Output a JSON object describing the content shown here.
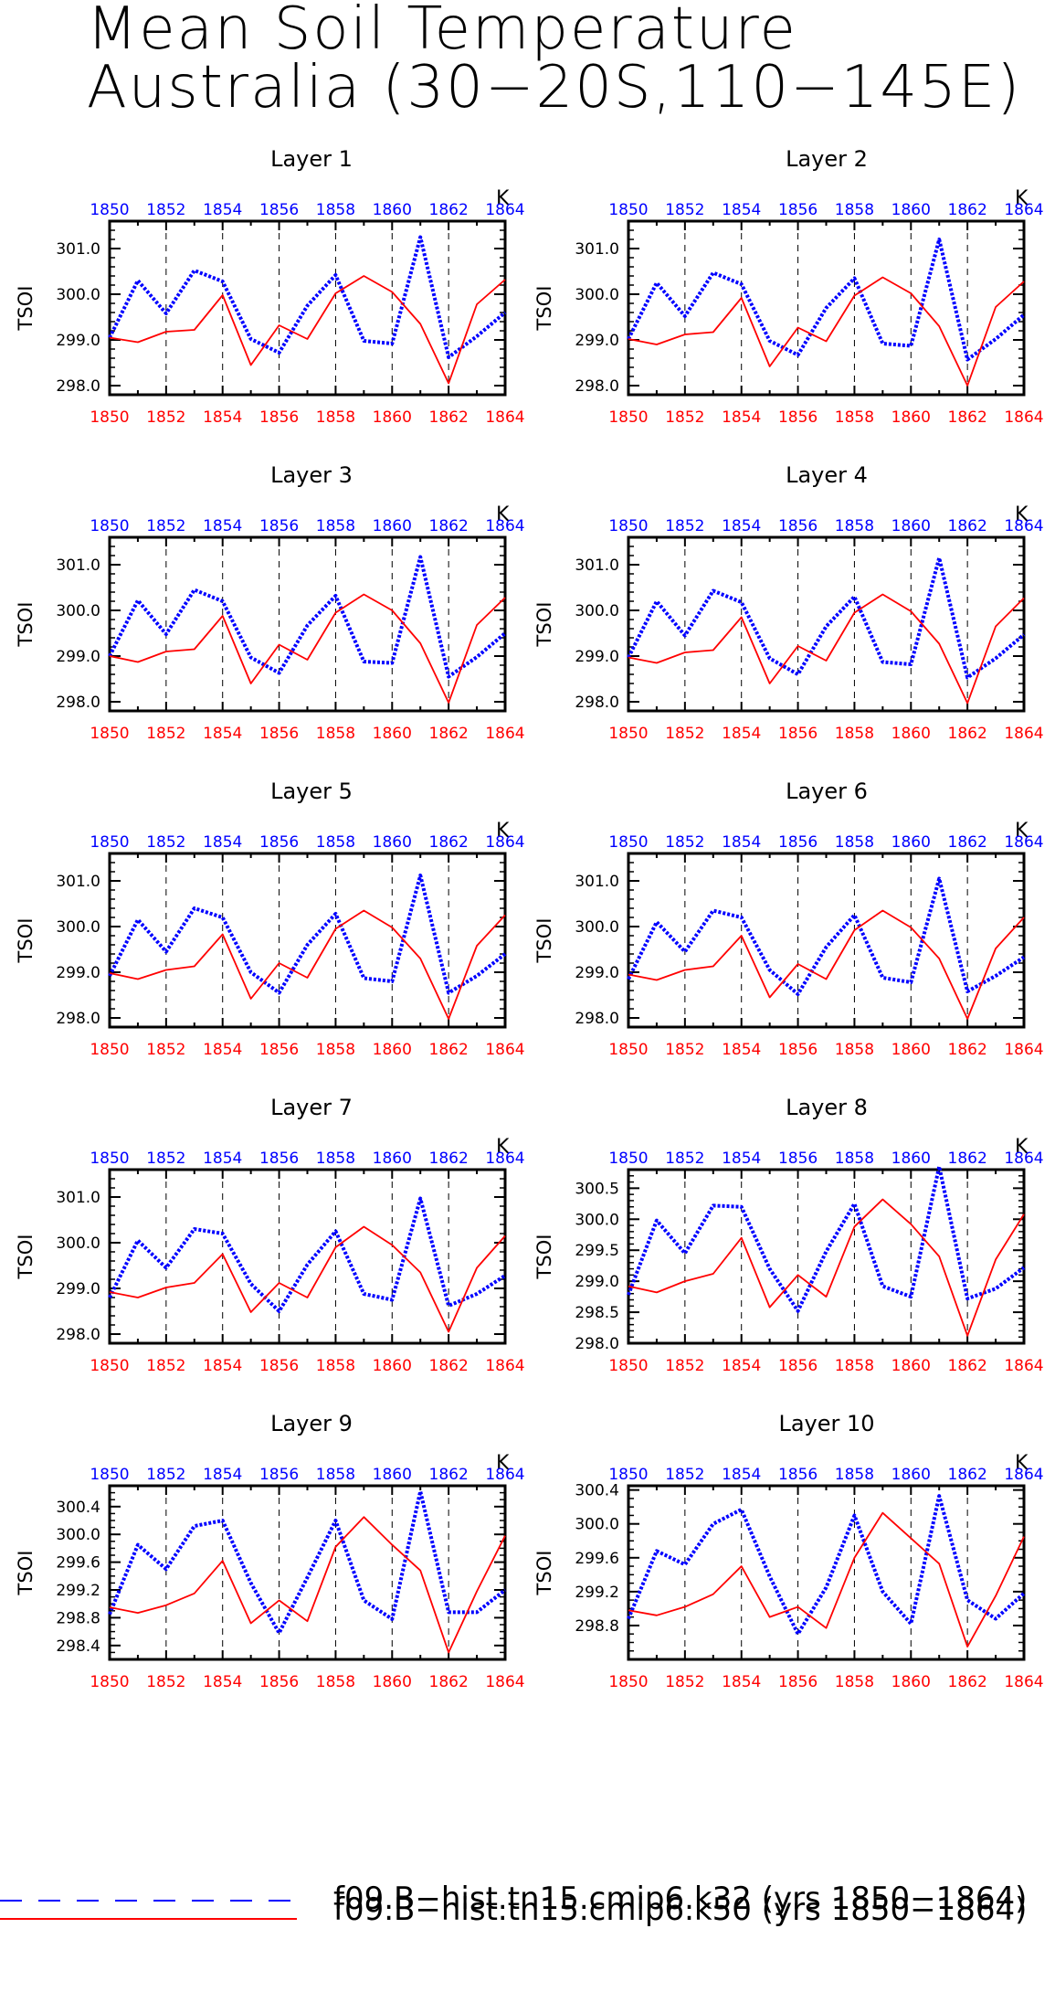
{
  "title": {
    "line1": "Mean Soil Temperature",
    "line2": "Australia (30−20S,110−145E)"
  },
  "colors": {
    "k32": "#0000ff",
    "k50": "#ff0000",
    "bottom_ticks": "#ff0000",
    "top_ticks": "#0000ff"
  },
  "legend": [
    {
      "label": "f09.B−hist.tn15.cmip6.k32 (yrs 1850−1864)",
      "color": "#0000ff",
      "style": "dashed"
    },
    {
      "label": "f09.B−hist.tn15.cmip6.k50 (yrs 1850−1864)",
      "color": "#ff0000",
      "style": "solid"
    }
  ],
  "chart_data": [
    {
      "type": "line",
      "title": "Layer 1",
      "ylabel": "TSOI",
      "units": "K",
      "x": [
        1850,
        1851,
        1852,
        1853,
        1854,
        1855,
        1856,
        1857,
        1858,
        1859,
        1860,
        1861,
        1862,
        1863,
        1864
      ],
      "xlim": [
        1850,
        1864
      ],
      "ylim": [
        297.8,
        301.6
      ],
      "yticks": [
        298.0,
        299.0,
        300.0,
        301.0
      ],
      "ytick_labels": [
        "298.0",
        "299.0",
        "300.0",
        "301.0"
      ],
      "yminor": 0.2,
      "xticks": [
        1850,
        1852,
        1854,
        1856,
        1858,
        1860,
        1862,
        1864
      ],
      "grid_x": [
        1852,
        1854,
        1856,
        1858,
        1860,
        1862
      ],
      "series": [
        {
          "name": "f09.B−hist.tn15.cmip6.k32",
          "color": "#0000ff",
          "style": "dotted",
          "values": [
            299.05,
            300.3,
            299.58,
            300.52,
            300.28,
            299.02,
            298.72,
            299.75,
            300.42,
            298.98,
            298.92,
            301.25,
            298.62,
            299.08,
            299.6
          ]
        },
        {
          "name": "f09.B−hist.tn15.cmip6.k50",
          "color": "#ff0000",
          "style": "solid",
          "values": [
            299.05,
            298.95,
            299.18,
            299.22,
            299.98,
            298.45,
            299.32,
            299.02,
            300.02,
            300.4,
            300.05,
            299.35,
            298.05,
            299.78,
            300.32
          ]
        }
      ]
    },
    {
      "type": "line",
      "title": "Layer 2",
      "ylabel": "TSOI",
      "units": "K",
      "x": [
        1850,
        1851,
        1852,
        1853,
        1854,
        1855,
        1856,
        1857,
        1858,
        1859,
        1860,
        1861,
        1862,
        1863,
        1864
      ],
      "xlim": [
        1850,
        1864
      ],
      "ylim": [
        297.8,
        301.6
      ],
      "yticks": [
        298.0,
        299.0,
        300.0,
        301.0
      ],
      "ytick_labels": [
        "298.0",
        "299.0",
        "300.0",
        "301.0"
      ],
      "yminor": 0.2,
      "xticks": [
        1850,
        1852,
        1854,
        1856,
        1858,
        1860,
        1862,
        1864
      ],
      "grid_x": [
        1852,
        1854,
        1856,
        1858,
        1860,
        1862
      ],
      "series": [
        {
          "name": "f09.B−hist.tn15.cmip6.k32",
          "color": "#0000ff",
          "style": "dotted",
          "values": [
            299.02,
            300.25,
            299.52,
            300.47,
            300.22,
            298.98,
            298.67,
            299.7,
            300.35,
            298.92,
            298.87,
            301.2,
            298.57,
            299.02,
            299.55
          ]
        },
        {
          "name": "f09.B−hist.tn15.cmip6.k50",
          "color": "#ff0000",
          "style": "solid",
          "values": [
            299.02,
            298.9,
            299.12,
            299.17,
            299.92,
            298.42,
            299.27,
            298.97,
            299.97,
            300.37,
            300.02,
            299.3,
            298.0,
            299.72,
            300.28
          ]
        }
      ]
    },
    {
      "type": "line",
      "title": "Layer 3",
      "ylabel": "TSOI",
      "units": "K",
      "x": [
        1850,
        1851,
        1852,
        1853,
        1854,
        1855,
        1856,
        1857,
        1858,
        1859,
        1860,
        1861,
        1862,
        1863,
        1864
      ],
      "xlim": [
        1850,
        1864
      ],
      "ylim": [
        297.8,
        301.6
      ],
      "yticks": [
        298.0,
        299.0,
        300.0,
        301.0
      ],
      "ytick_labels": [
        "298.0",
        "299.0",
        "300.0",
        "301.0"
      ],
      "yminor": 0.2,
      "xticks": [
        1850,
        1852,
        1854,
        1856,
        1858,
        1860,
        1862,
        1864
      ],
      "grid_x": [
        1852,
        1854,
        1856,
        1858,
        1860,
        1862
      ],
      "series": [
        {
          "name": "f09.B−hist.tn15.cmip6.k32",
          "color": "#0000ff",
          "style": "dotted",
          "values": [
            299.0,
            300.22,
            299.48,
            300.45,
            300.2,
            298.97,
            298.63,
            299.67,
            300.32,
            298.88,
            298.85,
            301.17,
            298.55,
            298.98,
            299.5
          ]
        },
        {
          "name": "f09.B−hist.tn15.cmip6.k50",
          "color": "#ff0000",
          "style": "solid",
          "values": [
            299.0,
            298.87,
            299.1,
            299.15,
            299.88,
            298.4,
            299.25,
            298.92,
            299.95,
            300.35,
            300.0,
            299.28,
            297.98,
            299.68,
            300.28
          ]
        }
      ]
    },
    {
      "type": "line",
      "title": "Layer 4",
      "ylabel": "TSOI",
      "units": "K",
      "x": [
        1850,
        1851,
        1852,
        1853,
        1854,
        1855,
        1856,
        1857,
        1858,
        1859,
        1860,
        1861,
        1862,
        1863,
        1864
      ],
      "xlim": [
        1850,
        1864
      ],
      "ylim": [
        297.8,
        301.6
      ],
      "yticks": [
        298.0,
        299.0,
        300.0,
        301.0
      ],
      "ytick_labels": [
        "298.0",
        "299.0",
        "300.0",
        "301.0"
      ],
      "yminor": 0.2,
      "xticks": [
        1850,
        1852,
        1854,
        1856,
        1858,
        1860,
        1862,
        1864
      ],
      "grid_x": [
        1852,
        1854,
        1856,
        1858,
        1860,
        1862
      ],
      "series": [
        {
          "name": "f09.B−hist.tn15.cmip6.k32",
          "color": "#0000ff",
          "style": "dotted",
          "values": [
            298.97,
            300.2,
            299.45,
            300.43,
            300.18,
            298.95,
            298.6,
            299.65,
            300.3,
            298.87,
            298.82,
            301.15,
            298.53,
            298.95,
            299.47
          ]
        },
        {
          "name": "f09.B−hist.tn15.cmip6.k50",
          "color": "#ff0000",
          "style": "solid",
          "values": [
            298.97,
            298.85,
            299.08,
            299.13,
            299.85,
            298.4,
            299.22,
            298.9,
            299.95,
            300.35,
            299.98,
            299.27,
            297.97,
            299.65,
            300.27
          ]
        }
      ]
    },
    {
      "type": "line",
      "title": "Layer 5",
      "ylabel": "TSOI",
      "units": "K",
      "x": [
        1850,
        1851,
        1852,
        1853,
        1854,
        1855,
        1856,
        1857,
        1858,
        1859,
        1860,
        1861,
        1862,
        1863,
        1864
      ],
      "xlim": [
        1850,
        1864
      ],
      "ylim": [
        297.8,
        301.6
      ],
      "yticks": [
        298.0,
        299.0,
        300.0,
        301.0
      ],
      "ytick_labels": [
        "298.0",
        "299.0",
        "300.0",
        "301.0"
      ],
      "yminor": 0.2,
      "xticks": [
        1850,
        1852,
        1854,
        1856,
        1858,
        1860,
        1862,
        1864
      ],
      "grid_x": [
        1852,
        1854,
        1856,
        1858,
        1860,
        1862
      ],
      "series": [
        {
          "name": "f09.B−hist.tn15.cmip6.k32",
          "color": "#0000ff",
          "style": "dotted",
          "values": [
            298.92,
            300.15,
            299.45,
            300.4,
            300.2,
            299.0,
            298.55,
            299.6,
            300.28,
            298.87,
            298.8,
            301.12,
            298.55,
            298.92,
            299.4
          ]
        },
        {
          "name": "f09.B−hist.tn15.cmip6.k50",
          "color": "#ff0000",
          "style": "solid",
          "values": [
            298.98,
            298.85,
            299.05,
            299.13,
            299.83,
            298.42,
            299.2,
            298.88,
            299.95,
            300.35,
            299.98,
            299.3,
            297.98,
            299.58,
            300.25
          ]
        }
      ]
    },
    {
      "type": "line",
      "title": "Layer 6",
      "ylabel": "TSOI",
      "units": "K",
      "x": [
        1850,
        1851,
        1852,
        1853,
        1854,
        1855,
        1856,
        1857,
        1858,
        1859,
        1860,
        1861,
        1862,
        1863,
        1864
      ],
      "xlim": [
        1850,
        1864
      ],
      "ylim": [
        297.8,
        301.6
      ],
      "yticks": [
        298.0,
        299.0,
        300.0,
        301.0
      ],
      "ytick_labels": [
        "298.0",
        "299.0",
        "300.0",
        "301.0"
      ],
      "yminor": 0.2,
      "xticks": [
        1850,
        1852,
        1854,
        1856,
        1858,
        1860,
        1862,
        1864
      ],
      "grid_x": [
        1852,
        1854,
        1856,
        1858,
        1860,
        1862
      ],
      "series": [
        {
          "name": "f09.B−hist.tn15.cmip6.k32",
          "color": "#0000ff",
          "style": "dotted",
          "values": [
            298.85,
            300.1,
            299.45,
            300.35,
            300.2,
            299.05,
            298.52,
            299.55,
            300.25,
            298.88,
            298.78,
            301.05,
            298.58,
            298.92,
            299.33
          ]
        },
        {
          "name": "f09.B−hist.tn15.cmip6.k50",
          "color": "#ff0000",
          "style": "solid",
          "values": [
            298.95,
            298.83,
            299.05,
            299.13,
            299.8,
            298.45,
            299.18,
            298.85,
            299.92,
            300.35,
            299.98,
            299.3,
            297.98,
            299.52,
            300.2
          ]
        }
      ]
    },
    {
      "type": "line",
      "title": "Layer 7",
      "ylabel": "TSOI",
      "units": "K",
      "x": [
        1850,
        1851,
        1852,
        1853,
        1854,
        1855,
        1856,
        1857,
        1858,
        1859,
        1860,
        1861,
        1862,
        1863,
        1864
      ],
      "xlim": [
        1850,
        1864
      ],
      "ylim": [
        297.8,
        301.6
      ],
      "yticks": [
        298.0,
        299.0,
        300.0,
        301.0
      ],
      "ytick_labels": [
        "298.0",
        "299.0",
        "300.0",
        "301.0"
      ],
      "yminor": 0.2,
      "xticks": [
        1850,
        1852,
        1854,
        1856,
        1858,
        1860,
        1862,
        1864
      ],
      "grid_x": [
        1852,
        1854,
        1856,
        1858,
        1860,
        1862
      ],
      "series": [
        {
          "name": "f09.B−hist.tn15.cmip6.k32",
          "color": "#0000ff",
          "style": "dotted",
          "values": [
            298.8,
            300.05,
            299.45,
            300.3,
            300.2,
            299.1,
            298.5,
            299.52,
            300.25,
            298.88,
            298.75,
            300.97,
            298.62,
            298.88,
            299.28
          ]
        },
        {
          "name": "f09.B−hist.tn15.cmip6.k50",
          "color": "#ff0000",
          "style": "solid",
          "values": [
            298.92,
            298.8,
            299.02,
            299.12,
            299.75,
            298.48,
            299.12,
            298.8,
            299.9,
            300.35,
            299.95,
            299.35,
            298.05,
            299.45,
            300.15
          ]
        }
      ]
    },
    {
      "type": "line",
      "title": "Layer 8",
      "ylabel": "TSOI",
      "units": "K",
      "x": [
        1850,
        1851,
        1852,
        1853,
        1854,
        1855,
        1856,
        1857,
        1858,
        1859,
        1860,
        1861,
        1862,
        1863,
        1864
      ],
      "xlim": [
        1850,
        1864
      ],
      "ylim": [
        298.0,
        300.8
      ],
      "yticks": [
        298.0,
        298.5,
        299.0,
        299.5,
        300.0,
        300.5
      ],
      "ytick_labels": [
        "298.0",
        "298.5",
        "299.0",
        "299.5",
        "300.0",
        "300.5"
      ],
      "yminor": 0.1,
      "xticks": [
        1850,
        1852,
        1854,
        1856,
        1858,
        1860,
        1862,
        1864
      ],
      "grid_x": [
        1852,
        1854,
        1856,
        1858,
        1860,
        1862
      ],
      "series": [
        {
          "name": "f09.B−hist.tn15.cmip6.k32",
          "color": "#0000ff",
          "style": "dotted",
          "values": [
            298.78,
            299.98,
            299.45,
            300.22,
            300.2,
            299.2,
            298.52,
            299.48,
            300.25,
            298.92,
            298.75,
            300.85,
            298.72,
            298.88,
            299.22
          ]
        },
        {
          "name": "f09.B−hist.tn15.cmip6.k50",
          "color": "#ff0000",
          "style": "solid",
          "values": [
            298.92,
            298.82,
            299.0,
            299.12,
            299.7,
            298.58,
            299.1,
            298.75,
            299.88,
            300.32,
            299.92,
            299.4,
            298.12,
            299.35,
            300.08
          ]
        }
      ]
    },
    {
      "type": "line",
      "title": "Layer 9",
      "ylabel": "TSOI",
      "units": "K",
      "x": [
        1850,
        1851,
        1852,
        1853,
        1854,
        1855,
        1856,
        1857,
        1858,
        1859,
        1860,
        1861,
        1862,
        1863,
        1864
      ],
      "xlim": [
        1850,
        1864
      ],
      "ylim": [
        298.2,
        300.7
      ],
      "yticks": [
        298.4,
        298.8,
        299.2,
        299.6,
        300.0,
        300.4
      ],
      "ytick_labels": [
        "298.4",
        "298.8",
        "299.2",
        "299.6",
        "300.0",
        "300.4"
      ],
      "yminor": 0.1,
      "xticks": [
        1850,
        1852,
        1854,
        1856,
        1858,
        1860,
        1862,
        1864
      ],
      "grid_x": [
        1852,
        1854,
        1856,
        1858,
        1860,
        1862
      ],
      "series": [
        {
          "name": "f09.B−hist.tn15.cmip6.k32",
          "color": "#0000ff",
          "style": "dotted",
          "values": [
            298.85,
            299.85,
            299.5,
            300.12,
            300.2,
            299.3,
            298.58,
            299.38,
            300.2,
            299.05,
            298.78,
            300.62,
            298.88,
            298.88,
            299.2
          ]
        },
        {
          "name": "f09.B−hist.tn15.cmip6.k50",
          "color": "#ff0000",
          "style": "solid",
          "values": [
            298.95,
            298.87,
            298.98,
            299.15,
            299.62,
            298.72,
            299.05,
            298.75,
            299.82,
            300.25,
            299.85,
            299.48,
            298.3,
            299.18,
            299.98
          ]
        }
      ]
    },
    {
      "type": "line",
      "title": "Layer 10",
      "ylabel": "TSOI",
      "units": "K",
      "x": [
        1850,
        1851,
        1852,
        1853,
        1854,
        1855,
        1856,
        1857,
        1858,
        1859,
        1860,
        1861,
        1862,
        1863,
        1864
      ],
      "xlim": [
        1850,
        1864
      ],
      "ylim": [
        298.4,
        300.45
      ],
      "yticks": [
        298.8,
        299.2,
        299.6,
        300.0,
        300.4
      ],
      "ytick_labels": [
        "298.8",
        "299.2",
        "299.6",
        "300.0",
        "300.4"
      ],
      "yminor": 0.1,
      "xticks": [
        1850,
        1852,
        1854,
        1856,
        1858,
        1860,
        1862,
        1864
      ],
      "grid_x": [
        1852,
        1854,
        1856,
        1858,
        1860,
        1862
      ],
      "series": [
        {
          "name": "f09.B−hist.tn15.cmip6.k32",
          "color": "#0000ff",
          "style": "dotted",
          "values": [
            298.88,
            299.68,
            299.52,
            300.0,
            300.17,
            299.38,
            298.7,
            299.25,
            300.1,
            299.2,
            298.82,
            300.33,
            299.1,
            298.88,
            299.18
          ]
        },
        {
          "name": "f09.B−hist.tn15.cmip6.k50",
          "color": "#ff0000",
          "style": "solid",
          "values": [
            298.98,
            298.92,
            299.02,
            299.17,
            299.5,
            298.9,
            299.02,
            298.77,
            299.6,
            300.13,
            299.83,
            299.53,
            298.55,
            299.15,
            299.85
          ]
        }
      ]
    }
  ]
}
